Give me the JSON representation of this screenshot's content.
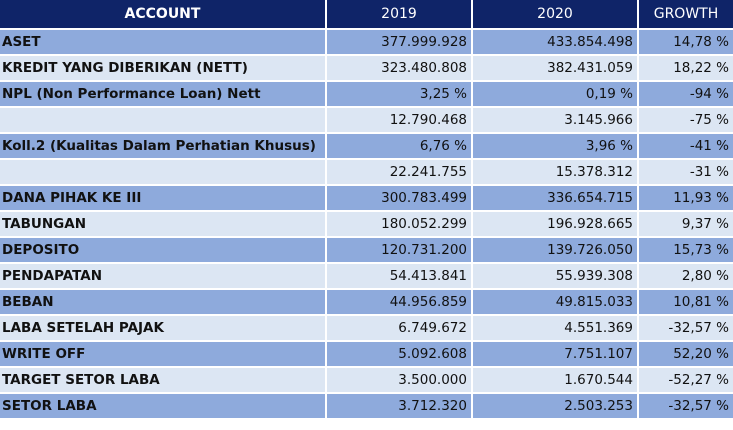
{
  "table": {
    "headers": [
      "ACCOUNT",
      "2019",
      "2020",
      "GROWTH"
    ],
    "rows": [
      {
        "account": "ASET",
        "y2019": "377.999.928",
        "y2020": "433.854.498",
        "growth": "14,78 %"
      },
      {
        "account": "KREDIT YANG DIBERIKAN (NETT)",
        "y2019": "323.480.808",
        "y2020": "382.431.059",
        "growth": "18,22 %"
      },
      {
        "account": "NPL (Non Performance Loan) Nett",
        "y2019": "3,25 %",
        "y2020": "0,19 %",
        "growth": "-94 %"
      },
      {
        "account": "",
        "y2019": "12.790.468",
        "y2020": "3.145.966",
        "growth": "-75 %"
      },
      {
        "account": "Koll.2 (Kualitas Dalam Perhatian Khusus)",
        "y2019": "6,76 %",
        "y2020": "3,96 %",
        "growth": "-41 %"
      },
      {
        "account": "",
        "y2019": "22.241.755",
        "y2020": "15.378.312",
        "growth": "-31 %"
      },
      {
        "account": "DANA PIHAK KE III",
        "y2019": "300.783.499",
        "y2020": "336.654.715",
        "growth": "11,93 %"
      },
      {
        "account": "TABUNGAN",
        "y2019": "180.052.299",
        "y2020": "196.928.665",
        "growth": "9,37 %"
      },
      {
        "account": "DEPOSITO",
        "y2019": "120.731.200",
        "y2020": "139.726.050",
        "growth": "15,73 %"
      },
      {
        "account": "PENDAPATAN",
        "y2019": "54.413.841",
        "y2020": "55.939.308",
        "growth": "2,80 %"
      },
      {
        "account": "BEBAN",
        "y2019": "44.956.859",
        "y2020": "49.815.033",
        "growth": "10,81 %"
      },
      {
        "account": "LABA SETELAH PAJAK",
        "y2019": "6.749.672",
        "y2020": "4.551.369",
        "growth": "-32,57 %"
      },
      {
        "account": "WRITE OFF",
        "y2019": "5.092.608",
        "y2020": "7.751.107",
        "growth": "52,20 %"
      },
      {
        "account": "TARGET SETOR LABA",
        "y2019": "3.500.000",
        "y2020": "1.670.544",
        "growth": "-52,27 %"
      },
      {
        "account": "SETOR LABA",
        "y2019": "3.712.320",
        "y2020": "2.503.253",
        "growth": "-32,57 %"
      }
    ]
  },
  "colors": {
    "header_bg": "#0f2468",
    "row_dark": "#8eaadc",
    "row_light": "#dce6f3"
  }
}
